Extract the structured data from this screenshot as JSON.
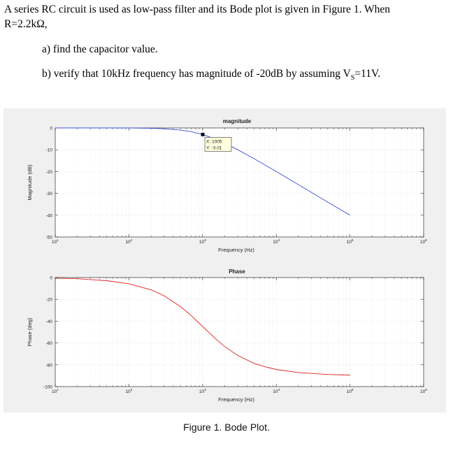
{
  "question": {
    "line1": "A series RC circuit is used as low-pass filter and its Bode plot is given in Figure 1. When",
    "line2": "R=2.2kΩ,",
    "part_a": "a) find  the capacitor value.",
    "part_b_prefix": "b) verify that 10kHz frequency has magnitude of -20dB by assuming V",
    "part_b_sub": "S",
    "part_b_suffix": "=11V."
  },
  "caption": "Figure 1. Bode Plot.",
  "colors": {
    "magnitude_line": "#3a4fd8",
    "phase_line": "#e02020",
    "panel_bg": "#f0f0f0"
  },
  "chart_data": [
    {
      "type": "line",
      "title": "magnitude",
      "xlabel": "Frequency (Hz)",
      "ylabel": "Magnitude (dB)",
      "x_scale": "log",
      "xlim": [
        10,
        1000000
      ],
      "ylim": [
        -50,
        0
      ],
      "x_ticks": [
        "10^1",
        "10^2",
        "10^3",
        "10^4",
        "10^5",
        "10^6"
      ],
      "y_ticks": [
        "0",
        "-10",
        "-20",
        "-30",
        "-40",
        "-50"
      ],
      "grid": true,
      "series": [
        {
          "x": [
            10,
            20,
            50,
            100,
            200,
            300,
            500,
            700,
            1005,
            1500,
            2000,
            3000,
            5000,
            10000,
            20000,
            50000,
            100000
          ],
          "y": [
            0,
            0,
            0,
            0,
            -0.2,
            -0.4,
            -1.0,
            -1.7,
            -3.01,
            -5.1,
            -7.0,
            -10.0,
            -14.1,
            -20.0,
            -26.0,
            -34.0,
            -40.0
          ]
        }
      ],
      "datatip": {
        "x_text": "X: 1005",
        "y_text": "Y: -3.01",
        "x": 1005,
        "y": -3.01
      }
    },
    {
      "type": "line",
      "title": "Phase",
      "xlabel": "Frequency (Hz)",
      "ylabel": "Phase (deg)",
      "x_scale": "log",
      "xlim": [
        10,
        1000000
      ],
      "ylim": [
        -100,
        0
      ],
      "x_ticks": [
        "10^1",
        "10^2",
        "10^3",
        "10^4",
        "10^5",
        "10^6"
      ],
      "y_ticks": [
        "0",
        "-20",
        "-40",
        "-60",
        "-80",
        "-100"
      ],
      "grid": true,
      "series": [
        {
          "x": [
            10,
            20,
            50,
            100,
            200,
            300,
            500,
            700,
            1000,
            1500,
            2000,
            3000,
            5000,
            7000,
            10000,
            20000,
            50000,
            100000
          ],
          "y": [
            -0.6,
            -1.1,
            -2.9,
            -5.7,
            -11.3,
            -16.7,
            -26.6,
            -34.9,
            -44.9,
            -56.2,
            -63.3,
            -71.5,
            -78.7,
            -81.8,
            -84.3,
            -87.1,
            -88.9,
            -89.4
          ]
        }
      ]
    }
  ]
}
